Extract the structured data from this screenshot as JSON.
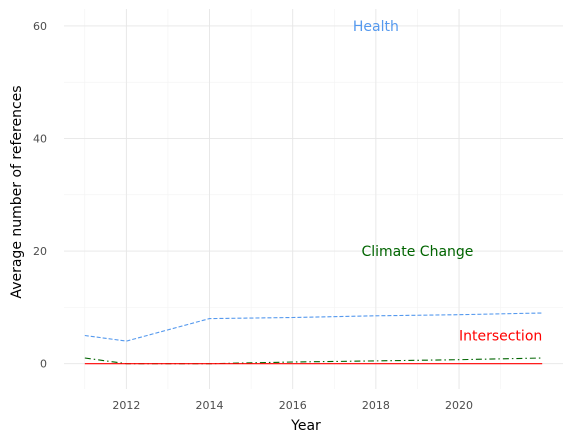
{
  "chart_data": {
    "type": "line",
    "xlabel": "Year",
    "ylabel": "Average number of references",
    "xlim": [
      2010.5,
      2022.5
    ],
    "ylim": [
      -4.5,
      63
    ],
    "x_ticks": [
      2012,
      2014,
      2016,
      2018,
      2020
    ],
    "y_ticks": [
      0,
      20,
      40,
      60
    ],
    "x_tick_labels": [
      "2012",
      "2014",
      "2016",
      "2018",
      "2020"
    ],
    "y_tick_labels": [
      "0",
      "20",
      "40",
      "60"
    ],
    "grid": true,
    "legend": "direct labels",
    "series": [
      {
        "name": "Health",
        "color": "#5599ee",
        "dash": "dashed",
        "label_at": [
          2018,
          60
        ],
        "x": [
          2011,
          2012,
          2014,
          2016,
          2018,
          2020,
          2022
        ],
        "y": [
          5,
          4,
          8,
          8.2,
          8.5,
          8.7,
          9
        ]
      },
      {
        "name": "Climate Change",
        "color": "#006400",
        "dash": "dashdot",
        "label_at": [
          2019,
          20
        ],
        "x": [
          2011,
          2012,
          2014,
          2016,
          2018,
          2020,
          2022
        ],
        "y": [
          1,
          0,
          0,
          0.3,
          0.5,
          0.7,
          1
        ]
      },
      {
        "name": "Intersection",
        "color": "#ff0000",
        "dash": "solid",
        "label_at": [
          2021,
          5
        ],
        "x": [
          2011,
          2012,
          2014,
          2016,
          2018,
          2020,
          2022
        ],
        "y": [
          0,
          0,
          0,
          0,
          0,
          0,
          0
        ]
      }
    ]
  }
}
